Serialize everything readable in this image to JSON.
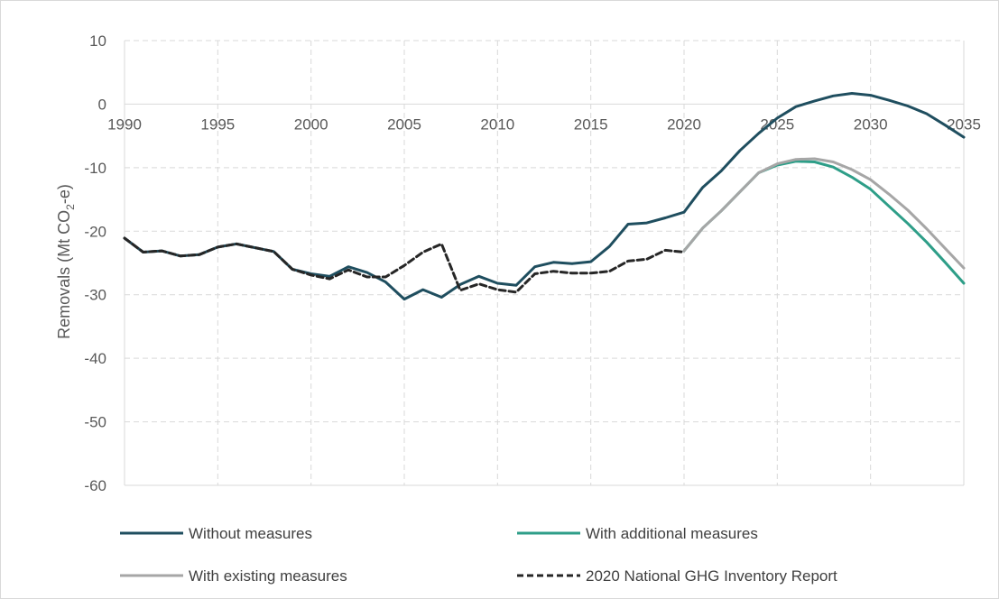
{
  "chart_data": {
    "type": "line",
    "ylabel": {
      "prefix": "Removals (Mt CO",
      "sub": "2",
      "suffix": "-e)"
    },
    "xlim": [
      1990,
      2035
    ],
    "ylim": [
      -60,
      10
    ],
    "x_ticks": [
      "1990",
      "1995",
      "2000",
      "2005",
      "2010",
      "2015",
      "2020",
      "2025",
      "2030",
      "2035"
    ],
    "y_ticks": [
      "10",
      "0",
      "-10",
      "-20",
      "-30",
      "-40",
      "-50",
      "-60"
    ],
    "grid": true,
    "legend_position": "bottom",
    "series": [
      {
        "name": "Without measures",
        "color": "#1f4e5f",
        "style": "solid",
        "x": [
          1990,
          1991,
          1992,
          1993,
          1994,
          1995,
          1996,
          1997,
          1998,
          1999,
          2000,
          2001,
          2002,
          2003,
          2004,
          2005,
          2006,
          2007,
          2008,
          2009,
          2010,
          2011,
          2012,
          2013,
          2014,
          2015,
          2016,
          2017,
          2018,
          2019,
          2020,
          2021,
          2022,
          2023,
          2024,
          2025,
          2026,
          2027,
          2028,
          2029,
          2030,
          2031,
          2032,
          2033,
          2034,
          2035
        ],
        "values": [
          -21.1,
          -23.3,
          -23.1,
          -23.9,
          -23.7,
          -22.5,
          -22.0,
          -22.6,
          -23.2,
          -26.0,
          -26.7,
          -27.1,
          -25.6,
          -26.5,
          -28.0,
          -30.7,
          -29.2,
          -30.4,
          -28.4,
          -27.1,
          -28.2,
          -28.5,
          -25.6,
          -24.9,
          -25.1,
          -24.8,
          -22.4,
          -18.9,
          -18.7,
          -17.9,
          -17.0,
          -13.1,
          -10.5,
          -7.3,
          -4.6,
          -2.2,
          -0.4,
          0.5,
          1.3,
          1.7,
          1.4,
          0.6,
          -0.3,
          -1.5,
          -3.3,
          -5.2
        ]
      },
      {
        "name": "With additional measures",
        "color": "#2e9e88",
        "style": "solid",
        "x": [
          2020,
          2021,
          2022,
          2023,
          2024,
          2025,
          2026,
          2027,
          2028,
          2029,
          2030,
          2031,
          2032,
          2033,
          2034,
          2035
        ],
        "values": [
          -23.1,
          -19.5,
          -16.8,
          -13.8,
          -10.8,
          -9.6,
          -9.0,
          -9.1,
          -9.9,
          -11.5,
          -13.4,
          -16.1,
          -18.8,
          -21.7,
          -24.9,
          -28.2
        ]
      },
      {
        "name": "With existing measures",
        "color": "#a6a6a6",
        "style": "solid",
        "x": [
          2020,
          2021,
          2022,
          2023,
          2024,
          2025,
          2026,
          2027,
          2028,
          2029,
          2030,
          2031,
          2032,
          2033,
          2034,
          2035
        ],
        "values": [
          -23.1,
          -19.5,
          -16.8,
          -13.8,
          -10.8,
          -9.4,
          -8.7,
          -8.6,
          -9.1,
          -10.3,
          -11.9,
          -14.2,
          -16.7,
          -19.6,
          -22.7,
          -25.8
        ]
      },
      {
        "name": "2020 National GHG Inventory Report",
        "color": "#262626",
        "style": "dashed",
        "x": [
          1990,
          1991,
          1992,
          1993,
          1994,
          1995,
          1996,
          1997,
          1998,
          1999,
          2000,
          2001,
          2002,
          2003,
          2004,
          2005,
          2006,
          2007,
          2008,
          2009,
          2010,
          2011,
          2012,
          2013,
          2014,
          2015,
          2016,
          2017,
          2018,
          2019,
          2020
        ],
        "values": [
          -21.1,
          -23.3,
          -23.1,
          -23.9,
          -23.7,
          -22.5,
          -22.0,
          -22.6,
          -23.2,
          -26.0,
          -26.9,
          -27.5,
          -26.1,
          -27.2,
          -27.2,
          -25.4,
          -23.3,
          -22.0,
          -29.3,
          -28.3,
          -29.2,
          -29.6,
          -26.7,
          -26.3,
          -26.6,
          -26.6,
          -26.3,
          -24.7,
          -24.4,
          -23.0,
          -23.3
        ]
      }
    ]
  }
}
